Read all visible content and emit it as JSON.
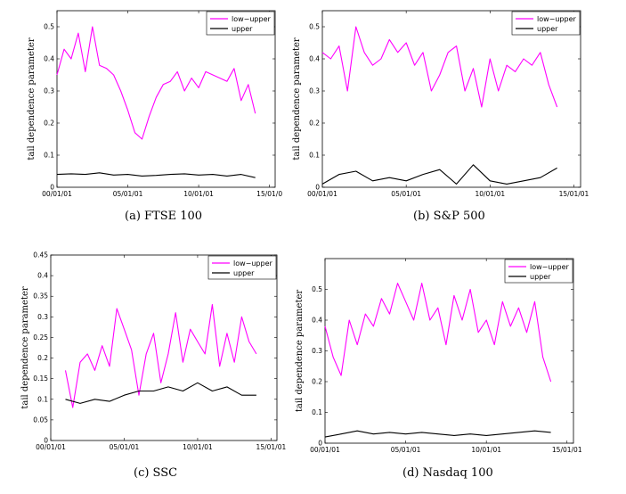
{
  "colors": {
    "low_upper": "#ff00ff",
    "upper": "#000000"
  },
  "chart_data": [
    {
      "type": "line",
      "caption": "(a) FTSE 100",
      "ylabel": "tail dependence parameter",
      "xlim": [
        0,
        15.4
      ],
      "ylim": [
        0,
        0.55
      ],
      "yticks": [
        "0",
        "0.1",
        "0.2",
        "0.3",
        "0.4",
        "0.5"
      ],
      "ytick_values": [
        0,
        0.1,
        0.2,
        0.3,
        0.4,
        0.5
      ],
      "xticks": [
        "00/01/01",
        "05/01/01",
        "10/01/01",
        "15/01/0"
      ],
      "xtick_values": [
        0,
        5,
        10,
        15
      ],
      "legend": "top-right",
      "series": [
        {
          "name": "low−upper",
          "x": [
            0,
            0.5,
            1,
            1.5,
            2,
            2.5,
            3,
            3.5,
            4,
            4.5,
            5,
            5.5,
            6,
            6.5,
            7,
            7.5,
            8,
            8.5,
            9,
            9.5,
            10,
            10.5,
            11,
            11.5,
            12,
            12.5,
            13,
            13.5,
            14
          ],
          "values": [
            0.35,
            0.43,
            0.4,
            0.48,
            0.36,
            0.5,
            0.38,
            0.37,
            0.35,
            0.3,
            0.24,
            0.17,
            0.15,
            0.22,
            0.28,
            0.32,
            0.33,
            0.36,
            0.3,
            0.34,
            0.31,
            0.36,
            0.35,
            0.34,
            0.33,
            0.37,
            0.27,
            0.32,
            0.23
          ]
        },
        {
          "name": "upper",
          "x": [
            0,
            1,
            2,
            3,
            4,
            5,
            6,
            7,
            8,
            9,
            10,
            11,
            12,
            13,
            14
          ],
          "values": [
            0.04,
            0.042,
            0.04,
            0.045,
            0.038,
            0.04,
            0.035,
            0.037,
            0.04,
            0.042,
            0.038,
            0.04,
            0.035,
            0.04,
            0.03
          ]
        }
      ]
    },
    {
      "type": "line",
      "caption": "(b) S&P 500",
      "ylabel": "tail dependence parameter",
      "xlim": [
        0,
        15.4
      ],
      "ylim": [
        0,
        0.55
      ],
      "yticks": [
        "0",
        "0.1",
        "0.2",
        "0.3",
        "0.4",
        "0.5"
      ],
      "ytick_values": [
        0,
        0.1,
        0.2,
        0.3,
        0.4,
        0.5
      ],
      "xticks": [
        "00/01/01",
        "05/01/01",
        "10/01/01",
        "15/01/01"
      ],
      "xtick_values": [
        0,
        5,
        10,
        15
      ],
      "legend": "top-right",
      "series": [
        {
          "name": "low−upper",
          "x": [
            0,
            0.5,
            1,
            1.5,
            2,
            2.5,
            3,
            3.5,
            4,
            4.5,
            5,
            5.5,
            6,
            6.5,
            7,
            7.5,
            8,
            8.5,
            9,
            9.5,
            10,
            10.5,
            11,
            11.5,
            12,
            12.5,
            13,
            13.5,
            14
          ],
          "values": [
            0.42,
            0.4,
            0.44,
            0.3,
            0.5,
            0.42,
            0.38,
            0.4,
            0.46,
            0.42,
            0.45,
            0.38,
            0.42,
            0.3,
            0.35,
            0.42,
            0.44,
            0.3,
            0.37,
            0.25,
            0.4,
            0.3,
            0.38,
            0.36,
            0.4,
            0.38,
            0.42,
            0.32,
            0.25
          ]
        },
        {
          "name": "upper",
          "x": [
            0,
            1,
            2,
            3,
            4,
            5,
            6,
            7,
            8,
            9,
            10,
            11,
            12,
            13,
            14
          ],
          "values": [
            0.01,
            0.04,
            0.05,
            0.02,
            0.03,
            0.02,
            0.04,
            0.055,
            0.01,
            0.07,
            0.02,
            0.01,
            0.02,
            0.03,
            0.06
          ]
        }
      ]
    },
    {
      "type": "line",
      "caption": "(c) SSC",
      "ylabel": "tail dependence parameter",
      "xlim": [
        0,
        15.4
      ],
      "ylim": [
        0,
        0.45
      ],
      "yticks": [
        "0",
        "0.05",
        "0.1",
        "0.15",
        "0.2",
        "0.25",
        "0.3",
        "0.35",
        "0.4",
        "0.45"
      ],
      "ytick_values": [
        0,
        0.05,
        0.1,
        0.15,
        0.2,
        0.25,
        0.3,
        0.35,
        0.4,
        0.45
      ],
      "xticks": [
        "00/01/01",
        "05/01/01",
        "10/01/01",
        "15/01/01"
      ],
      "xtick_values": [
        0,
        5,
        10,
        15
      ],
      "legend": "top-right",
      "series": [
        {
          "name": "low−upper",
          "x": [
            1,
            1.5,
            2,
            2.5,
            3,
            3.5,
            4,
            4.5,
            5,
            5.5,
            6,
            6.5,
            7,
            7.5,
            8,
            8.5,
            9,
            9.5,
            10,
            10.5,
            11,
            11.5,
            12,
            12.5,
            13,
            13.5,
            14
          ],
          "values": [
            0.17,
            0.08,
            0.19,
            0.21,
            0.17,
            0.23,
            0.18,
            0.32,
            0.27,
            0.22,
            0.11,
            0.21,
            0.26,
            0.14,
            0.21,
            0.31,
            0.19,
            0.27,
            0.24,
            0.21,
            0.33,
            0.18,
            0.26,
            0.19,
            0.3,
            0.24,
            0.21
          ]
        },
        {
          "name": "upper",
          "x": [
            1,
            2,
            3,
            4,
            5,
            6,
            7,
            8,
            9,
            10,
            11,
            12,
            13,
            14
          ],
          "values": [
            0.1,
            0.09,
            0.1,
            0.095,
            0.11,
            0.12,
            0.12,
            0.13,
            0.12,
            0.14,
            0.12,
            0.13,
            0.11,
            0.11
          ]
        }
      ]
    },
    {
      "type": "line",
      "caption": "(d) Nasdaq 100",
      "ylabel": "tail dependence parameter",
      "xlim": [
        0,
        15.4
      ],
      "ylim": [
        0,
        0.6
      ],
      "yticks": [
        "0",
        "0.1",
        "0.2",
        "0.3",
        "0.4",
        "0.5"
      ],
      "ytick_values": [
        0,
        0.1,
        0.2,
        0.3,
        0.4,
        0.5
      ],
      "xticks": [
        "00/01/01",
        "05/01/01",
        "10/01/01",
        "15/01/01"
      ],
      "xtick_values": [
        0,
        5,
        10,
        15
      ],
      "legend": "top-right",
      "series": [
        {
          "name": "low−upper",
          "x": [
            0,
            0.5,
            1,
            1.5,
            2,
            2.5,
            3,
            3.5,
            4,
            4.5,
            5,
            5.5,
            6,
            6.5,
            7,
            7.5,
            8,
            8.5,
            9,
            9.5,
            10,
            10.5,
            11,
            11.5,
            12,
            12.5,
            13,
            13.5,
            14
          ],
          "values": [
            0.38,
            0.28,
            0.22,
            0.4,
            0.32,
            0.42,
            0.38,
            0.47,
            0.42,
            0.52,
            0.46,
            0.4,
            0.52,
            0.4,
            0.44,
            0.32,
            0.48,
            0.4,
            0.5,
            0.36,
            0.4,
            0.32,
            0.46,
            0.38,
            0.44,
            0.36,
            0.46,
            0.28,
            0.2
          ]
        },
        {
          "name": "upper",
          "x": [
            0,
            1,
            2,
            3,
            4,
            5,
            6,
            7,
            8,
            9,
            10,
            11,
            12,
            13,
            14
          ],
          "values": [
            0.02,
            0.03,
            0.04,
            0.03,
            0.035,
            0.03,
            0.035,
            0.03,
            0.025,
            0.03,
            0.025,
            0.03,
            0.035,
            0.04,
            0.035
          ]
        }
      ]
    }
  ]
}
